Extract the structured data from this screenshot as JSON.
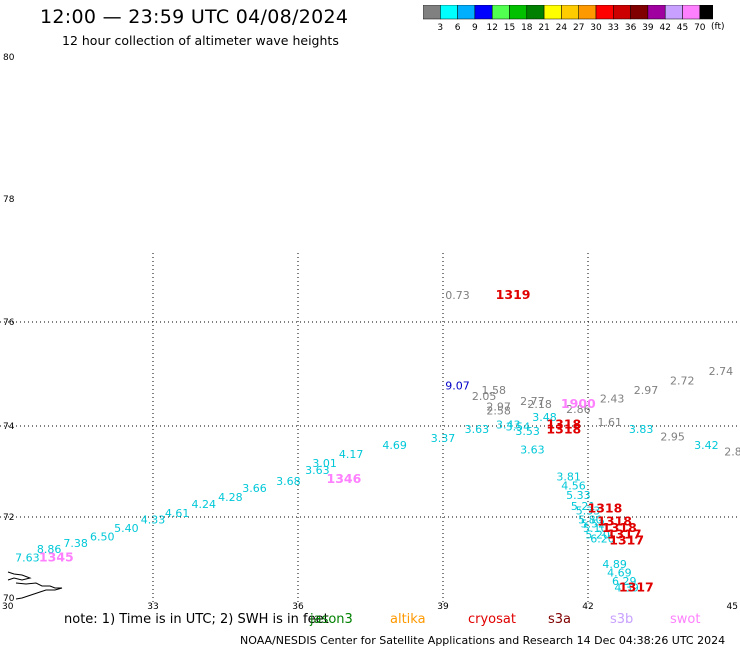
{
  "header": {
    "title": "12:00 — 23:59 UTC 04/08/2024",
    "subtitle": "12 hour collection of altimeter wave heights"
  },
  "colorbar": {
    "labels": [
      "3",
      "6",
      "9",
      "12",
      "15",
      "18",
      "21",
      "24",
      "27",
      "30",
      "33",
      "36",
      "39",
      "42",
      "45",
      "70"
    ],
    "colors": [
      "#808080",
      "#00ffff",
      "#00b0ff",
      "#0000ff",
      "#50ff50",
      "#00c000",
      "#008000",
      "#ffff00",
      "#ffcc00",
      "#ff9900",
      "#ff0000",
      "#cc0000",
      "#800000",
      "#a000a0",
      "#c8a0ff",
      "#ff80ff",
      "#000000"
    ],
    "unit": "(ft)"
  },
  "chart_data": {
    "type": "scatter",
    "xlim": [
      30,
      45
    ],
    "ylim": [
      70,
      80
    ],
    "x_ticks": [
      "30",
      "33",
      "36",
      "39",
      "42",
      "45"
    ],
    "y_ticks": [
      "70",
      "72",
      "74",
      "76",
      "78",
      "80"
    ],
    "grid_x": [
      33,
      36,
      39,
      42
    ],
    "grid_y": [
      72,
      74,
      76
    ],
    "points": [
      {
        "text": "0.73",
        "lon": 39.3,
        "lat": 76.37,
        "color": "#808080"
      },
      {
        "text": "9.07",
        "lon": 39.3,
        "lat": 74.7,
        "color": "#0000c8"
      },
      {
        "text": "1.58",
        "lon": 40.05,
        "lat": 74.62,
        "color": "#808080"
      },
      {
        "text": "2.05",
        "lon": 39.85,
        "lat": 74.5,
        "color": "#808080"
      },
      {
        "text": "2.77",
        "lon": 40.85,
        "lat": 74.4,
        "color": "#808080"
      },
      {
        "text": "2.18",
        "lon": 41.0,
        "lat": 74.35,
        "color": "#808080"
      },
      {
        "text": "2.97",
        "lon": 40.15,
        "lat": 74.3,
        "color": "#808080"
      },
      {
        "text": "2.58",
        "lon": 40.15,
        "lat": 74.22,
        "color": "#808080"
      },
      {
        "text": "2.86",
        "lon": 41.8,
        "lat": 74.25,
        "color": "#808080"
      },
      {
        "text": "2.43",
        "lon": 42.5,
        "lat": 74.45,
        "color": "#808080"
      },
      {
        "text": "2.97",
        "lon": 43.2,
        "lat": 74.62,
        "color": "#808080"
      },
      {
        "text": "2.72",
        "lon": 43.95,
        "lat": 74.8,
        "color": "#808080"
      },
      {
        "text": "2.74",
        "lon": 44.75,
        "lat": 74.98,
        "color": "#808080"
      },
      {
        "text": "1.61",
        "lon": 42.45,
        "lat": 74.0,
        "color": "#808080"
      },
      {
        "text": "2.95",
        "lon": 43.75,
        "lat": 73.68,
        "color": "#808080"
      },
      {
        "text": "2.8",
        "lon": 45.0,
        "lat": 73.35,
        "color": "#808080"
      },
      {
        "text": "3.42",
        "lon": 44.45,
        "lat": 73.5,
        "color": "#00c8d8"
      },
      {
        "text": "3.83",
        "lon": 43.1,
        "lat": 73.85,
        "color": "#00c8d8"
      },
      {
        "text": "3.48",
        "lon": 41.1,
        "lat": 74.1,
        "color": "#00c8d8"
      },
      {
        "text": "3.43",
        "lon": 40.35,
        "lat": 73.95,
        "color": "#00c8d8"
      },
      {
        "text": "3.54",
        "lon": 40.55,
        "lat": 73.9,
        "color": "#00c8d8"
      },
      {
        "text": "3.53",
        "lon": 40.75,
        "lat": 73.8,
        "color": "#00c8d8"
      },
      {
        "text": "3.63",
        "lon": 39.7,
        "lat": 73.85,
        "color": "#00c8d8"
      },
      {
        "text": "3.37",
        "lon": 39.0,
        "lat": 73.65,
        "color": "#00c8d8"
      },
      {
        "text": "3.63",
        "lon": 40.85,
        "lat": 73.4,
        "color": "#00c8d8"
      },
      {
        "text": "4.69",
        "lon": 38.0,
        "lat": 73.5,
        "color": "#00c8d8"
      },
      {
        "text": "4.17",
        "lon": 37.1,
        "lat": 73.3,
        "color": "#00c8d8"
      },
      {
        "text": "3.01",
        "lon": 36.55,
        "lat": 73.1,
        "color": "#00c8d8"
      },
      {
        "text": "3.63",
        "lon": 36.4,
        "lat": 72.95,
        "color": "#00c8d8"
      },
      {
        "text": "3.68",
        "lon": 35.8,
        "lat": 72.7,
        "color": "#00c8d8"
      },
      {
        "text": "3.66",
        "lon": 35.1,
        "lat": 72.55,
        "color": "#00c8d8"
      },
      {
        "text": "4.28",
        "lon": 34.6,
        "lat": 72.35,
        "color": "#00c8d8"
      },
      {
        "text": "4.24",
        "lon": 34.05,
        "lat": 72.2,
        "color": "#00c8d8"
      },
      {
        "text": "4.61",
        "lon": 33.5,
        "lat": 72.0,
        "color": "#00c8d8"
      },
      {
        "text": "4.33",
        "lon": 33.0,
        "lat": 71.85,
        "color": "#00c8d8"
      },
      {
        "text": "5.40",
        "lon": 32.45,
        "lat": 71.65,
        "color": "#00c8d8"
      },
      {
        "text": "6.50",
        "lon": 31.95,
        "lat": 71.45,
        "color": "#00c8d8"
      },
      {
        "text": "7.38",
        "lon": 31.4,
        "lat": 71.3,
        "color": "#00c8d8"
      },
      {
        "text": "8.86",
        "lon": 30.85,
        "lat": 71.15,
        "color": "#00c8d8"
      },
      {
        "text": "7.63",
        "lon": 30.4,
        "lat": 70.95,
        "color": "#00c8d8"
      },
      {
        "text": "3.81",
        "lon": 41.6,
        "lat": 72.8,
        "color": "#00c8d8"
      },
      {
        "text": "4.56",
        "lon": 41.7,
        "lat": 72.6,
        "color": "#00c8d8"
      },
      {
        "text": "5.33",
        "lon": 41.8,
        "lat": 72.4,
        "color": "#00c8d8"
      },
      {
        "text": "5.21",
        "lon": 41.9,
        "lat": 72.15,
        "color": "#00c8d8"
      },
      {
        "text": "5.33",
        "lon": 42.0,
        "lat": 72.05,
        "color": "#00c8d8"
      },
      {
        "text": "5.80",
        "lon": 42.05,
        "lat": 71.85,
        "color": "#00c8d8"
      },
      {
        "text": "5.52",
        "lon": 42.1,
        "lat": 71.75,
        "color": "#00c8d8"
      },
      {
        "text": "5.10",
        "lon": 42.15,
        "lat": 71.65,
        "color": "#00c8d8"
      },
      {
        "text": "5.20",
        "lon": 42.2,
        "lat": 71.5,
        "color": "#00c8d8"
      },
      {
        "text": "6.20",
        "lon": 42.3,
        "lat": 71.4,
        "color": "#00c8d8"
      },
      {
        "text": "4.89",
        "lon": 42.55,
        "lat": 70.8,
        "color": "#00c8d8"
      },
      {
        "text": "4.69",
        "lon": 42.65,
        "lat": 70.6,
        "color": "#00c8d8"
      },
      {
        "text": "6.29",
        "lon": 42.75,
        "lat": 70.4,
        "color": "#00c8d8"
      },
      {
        "text": "4.39",
        "lon": 42.8,
        "lat": 70.25,
        "color": "#00c8d8"
      }
    ],
    "time_labels": [
      {
        "text": "1319",
        "lon": 40.45,
        "lat": 76.37,
        "color": "#e00000"
      },
      {
        "text": "1900",
        "lon": 41.8,
        "lat": 74.35,
        "color": "#ff80ff"
      },
      {
        "text": "1318",
        "lon": 41.5,
        "lat": 73.95,
        "color": "#e00000"
      },
      {
        "text": "1318",
        "lon": 41.5,
        "lat": 73.83,
        "color": "#e00000"
      },
      {
        "text": "1346",
        "lon": 36.95,
        "lat": 72.75,
        "color": "#ff80ff"
      },
      {
        "text": "1345",
        "lon": 31.0,
        "lat": 70.95,
        "color": "#ff80ff"
      },
      {
        "text": "1318",
        "lon": 42.35,
        "lat": 72.1,
        "color": "#e00000"
      },
      {
        "text": "1318",
        "lon": 42.55,
        "lat": 71.8,
        "color": "#e00000"
      },
      {
        "text": "1318",
        "lon": 42.65,
        "lat": 71.65,
        "color": "#e00000"
      },
      {
        "text": "1317",
        "lon": 42.75,
        "lat": 71.5,
        "color": "#e00000"
      },
      {
        "text": "1317",
        "lon": 42.8,
        "lat": 71.35,
        "color": "#e00000"
      },
      {
        "text": "1317",
        "lon": 43.0,
        "lat": 70.25,
        "color": "#e00000"
      }
    ]
  },
  "footer": {
    "note": "note:  1) Time is in UTC; 2) SWH is in feet",
    "satellites": [
      {
        "name": "jason3",
        "color": "#008000"
      },
      {
        "name": "altika",
        "color": "#ff9900"
      },
      {
        "name": "cryosat",
        "color": "#e00000"
      },
      {
        "name": "s3a",
        "color": "#800000"
      },
      {
        "name": "s3b",
        "color": "#c8a0ff"
      },
      {
        "name": "swot",
        "color": "#ff80ff"
      }
    ],
    "credit": "NOAA/NESDIS Center for Satellite Applications and Research    14 Dec 04:38:26 UTC 2024"
  }
}
